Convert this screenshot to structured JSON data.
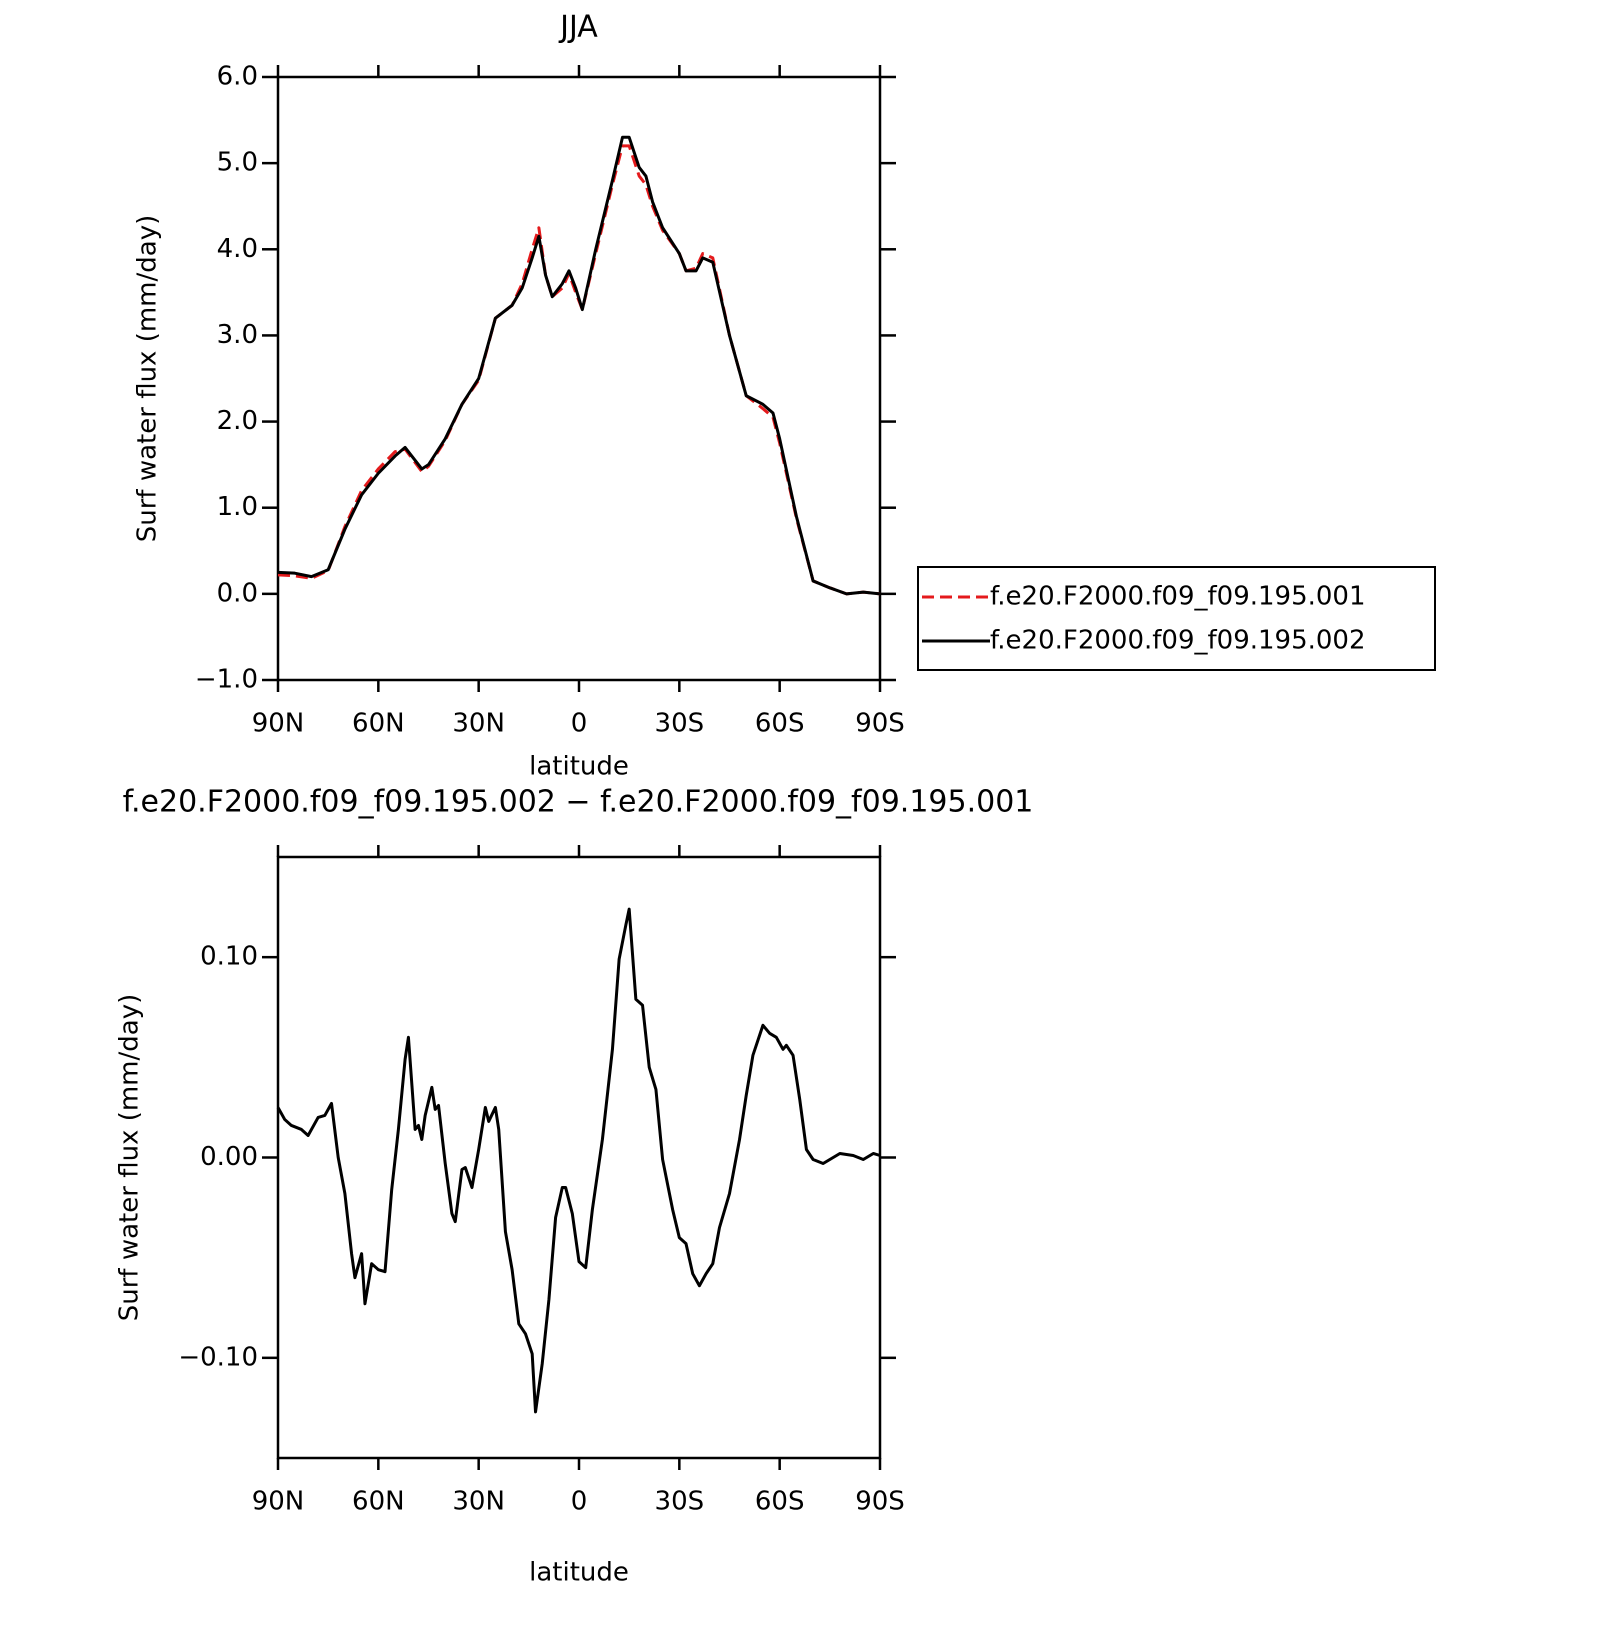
{
  "chart_data": [
    {
      "type": "line",
      "title": "JJA",
      "xlabel": "latitude",
      "ylabel": "Surf water flux (mm/day)",
      "x": [
        90,
        85,
        80,
        75,
        70,
        65,
        60,
        55,
        52,
        47,
        45,
        40,
        35,
        30,
        25,
        20,
        17,
        14,
        12,
        10,
        8,
        5,
        3,
        1,
        -1,
        -5,
        -10,
        -13,
        -15,
        -18,
        -20,
        -22,
        -25,
        -30,
        -32,
        -35,
        -37,
        -40,
        -45,
        -50,
        -55,
        -58,
        -60,
        -65,
        -70,
        -75,
        -80,
        -85,
        -90
      ],
      "series": [
        {
          "name": "f.e20.F2000.f09_f09.195.001",
          "color": "#e41a1c",
          "line_style": "dashed",
          "values": [
            0.22,
            0.21,
            0.18,
            0.27,
            0.78,
            1.2,
            1.45,
            1.65,
            1.68,
            1.42,
            1.48,
            1.78,
            2.2,
            2.48,
            3.2,
            3.35,
            3.6,
            4.0,
            4.25,
            3.7,
            3.45,
            3.55,
            3.72,
            3.5,
            3.3,
            3.95,
            4.75,
            5.2,
            5.2,
            4.85,
            4.75,
            4.5,
            4.22,
            3.95,
            3.75,
            3.78,
            3.95,
            3.9,
            3.0,
            2.3,
            2.15,
            2.05,
            1.75,
            0.88,
            0.15,
            0.07,
            0.0,
            0.02,
            0.0
          ]
        },
        {
          "name": "f.e20.F2000.f09_f09.195.002",
          "color": "#000000",
          "line_style": "solid",
          "values": [
            0.25,
            0.24,
            0.2,
            0.28,
            0.75,
            1.15,
            1.4,
            1.6,
            1.7,
            1.45,
            1.5,
            1.8,
            2.2,
            2.5,
            3.2,
            3.35,
            3.55,
            3.9,
            4.15,
            3.7,
            3.45,
            3.6,
            3.75,
            3.55,
            3.3,
            4.0,
            4.8,
            5.3,
            5.3,
            4.95,
            4.85,
            4.55,
            4.25,
            3.95,
            3.75,
            3.75,
            3.9,
            3.85,
            3.0,
            2.3,
            2.2,
            2.1,
            1.8,
            0.9,
            0.15,
            0.07,
            0.0,
            0.02,
            0.0
          ]
        }
      ],
      "xlim": [
        90,
        -90
      ],
      "xticks": [
        {
          "value": 90,
          "label": "90N"
        },
        {
          "value": 60,
          "label": "60N"
        },
        {
          "value": 30,
          "label": "30N"
        },
        0,
        {
          "value": -30,
          "label": "30S"
        },
        {
          "value": -60,
          "label": "60S"
        },
        {
          "value": -90,
          "label": "90S"
        }
      ],
      "ylim": [
        -1,
        6
      ],
      "yticks": [
        {
          "value": -1,
          "label": "−1.0"
        },
        {
          "value": 0,
          "label": "0.0"
        },
        {
          "value": 1,
          "label": "1.0"
        },
        {
          "value": 2,
          "label": "2.0"
        },
        {
          "value": 3,
          "label": "3.0"
        },
        {
          "value": 4,
          "label": "4.0"
        },
        {
          "value": 5,
          "label": "5.0"
        },
        {
          "value": 6,
          "label": "6.0"
        }
      ],
      "legend": "right"
    },
    {
      "type": "line",
      "title": "f.e20.F2000.f09_f09.195.002 − f.e20.F2000.f09_f09.195.001",
      "xlabel": "latitude",
      "ylabel": "Surf water flux (mm/day)",
      "x": [
        90,
        88,
        86,
        83,
        81,
        78,
        76,
        74,
        72,
        70,
        68,
        67,
        65,
        64,
        62,
        60,
        58,
        56,
        54,
        52,
        51,
        49,
        48,
        47,
        46,
        44,
        43,
        42,
        40,
        38,
        37,
        35,
        34,
        32,
        30,
        28,
        27,
        25,
        24,
        22,
        20,
        18,
        16,
        14,
        13,
        11,
        9,
        7,
        5,
        4,
        2,
        0,
        -2,
        -4,
        -7,
        -10,
        -12,
        -14,
        -15,
        -17,
        -19,
        -21,
        -23,
        -25,
        -28,
        -30,
        -32,
        -34,
        -36,
        -38,
        -40,
        -42,
        -45,
        -48,
        -50,
        -52,
        -55,
        -57,
        -59,
        -61,
        -62,
        -64,
        -66,
        -68,
        -70,
        -73,
        -75,
        -78,
        -82,
        -85,
        -88,
        -90
      ],
      "series": [
        {
          "color": "#000000",
          "line_style": "solid",
          "values": [
            0.025,
            0.019,
            0.016,
            0.014,
            0.011,
            0.02,
            0.021,
            0.027,
            0,
            -0.018,
            -0.048,
            -0.06,
            -0.048,
            -0.073,
            -0.053,
            -0.056,
            -0.057,
            -0.016,
            0.014,
            0.049,
            0.06,
            0.014,
            0.016,
            0.009,
            0.021,
            0.035,
            0.024,
            0.026,
            -0.003,
            -0.028,
            -0.032,
            -0.006,
            -0.005,
            -0.015,
            0.004,
            0.025,
            0.018,
            0.025,
            0.014,
            -0.037,
            -0.056,
            -0.083,
            -0.088,
            -0.098,
            -0.127,
            -0.103,
            -0.071,
            -0.03,
            -0.015,
            -0.015,
            -0.028,
            -0.052,
            -0.055,
            -0.026,
            0.009,
            0.054,
            0.099,
            0.116,
            0.124,
            0.079,
            0.076,
            0.045,
            0.034,
            -0.001,
            -0.026,
            -0.04,
            -0.043,
            -0.058,
            -0.064,
            -0.058,
            -0.053,
            -0.035,
            -0.018,
            0.009,
            0.031,
            0.051,
            0.066,
            0.062,
            0.06,
            0.054,
            0.056,
            0.051,
            0.029,
            0.004,
            -0.001,
            -0.003,
            -0.001,
            0.002,
            0.001,
            -0.001,
            0.002,
            0.001
          ]
        }
      ],
      "xlim": [
        90,
        -90
      ],
      "xticks": [
        {
          "value": 90,
          "label": "90N"
        },
        {
          "value": 60,
          "label": "60N"
        },
        {
          "value": 30,
          "label": "30N"
        },
        0,
        {
          "value": -30,
          "label": "30S"
        },
        {
          "value": -60,
          "label": "60S"
        },
        {
          "value": -90,
          "label": "90S"
        }
      ],
      "ylim": [
        -0.15,
        0.15
      ],
      "yticks": [
        {
          "value": -0.1,
          "label": "−0.10"
        },
        {
          "value": 0,
          "label": "0.00"
        },
        {
          "value": 0.1,
          "label": "0.10"
        }
      ]
    }
  ]
}
